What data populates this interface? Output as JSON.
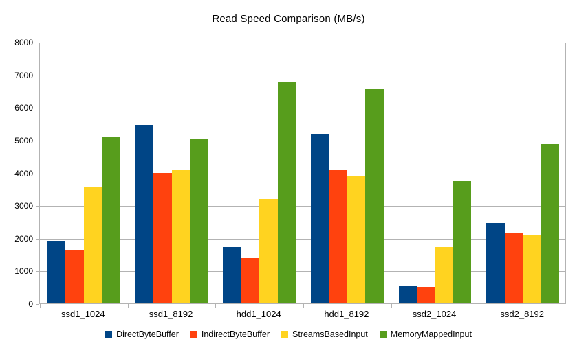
{
  "chart_data": {
    "type": "bar",
    "title": "Read Speed Comparison (MB/s)",
    "categories": [
      "ssd1_1024",
      "ssd1_8192",
      "hdd1_1024",
      "hdd1_8192",
      "ssd2_1024",
      "ssd2_8192"
    ],
    "series": [
      {
        "name": "DirectByteBuffer",
        "color": "#004586",
        "values": [
          1920,
          5450,
          1730,
          5190,
          550,
          2450
        ]
      },
      {
        "name": "IndirectByteBuffer",
        "color": "#FF420E",
        "values": [
          1640,
          4000,
          1390,
          4100,
          500,
          2140
        ]
      },
      {
        "name": "StreamsBasedInput",
        "color": "#FFD320",
        "values": [
          3550,
          4100,
          3200,
          3900,
          1730,
          2100
        ]
      },
      {
        "name": "MemoryMappedInput",
        "color": "#579D1C",
        "values": [
          5100,
          5050,
          6780,
          6580,
          3760,
          4880
        ]
      }
    ],
    "xlabel": "",
    "ylabel": "",
    "ylim": [
      0,
      8000
    ],
    "ytick_step": 1000,
    "ytick_labels": [
      "0",
      "1000",
      "2000",
      "3000",
      "4000",
      "5000",
      "6000",
      "7000",
      "8000"
    ],
    "grid": "horizontal",
    "legend_position": "bottom",
    "axis_color": "#b3b3b3",
    "text_color": "#000000",
    "background_color": "#ffffff"
  }
}
